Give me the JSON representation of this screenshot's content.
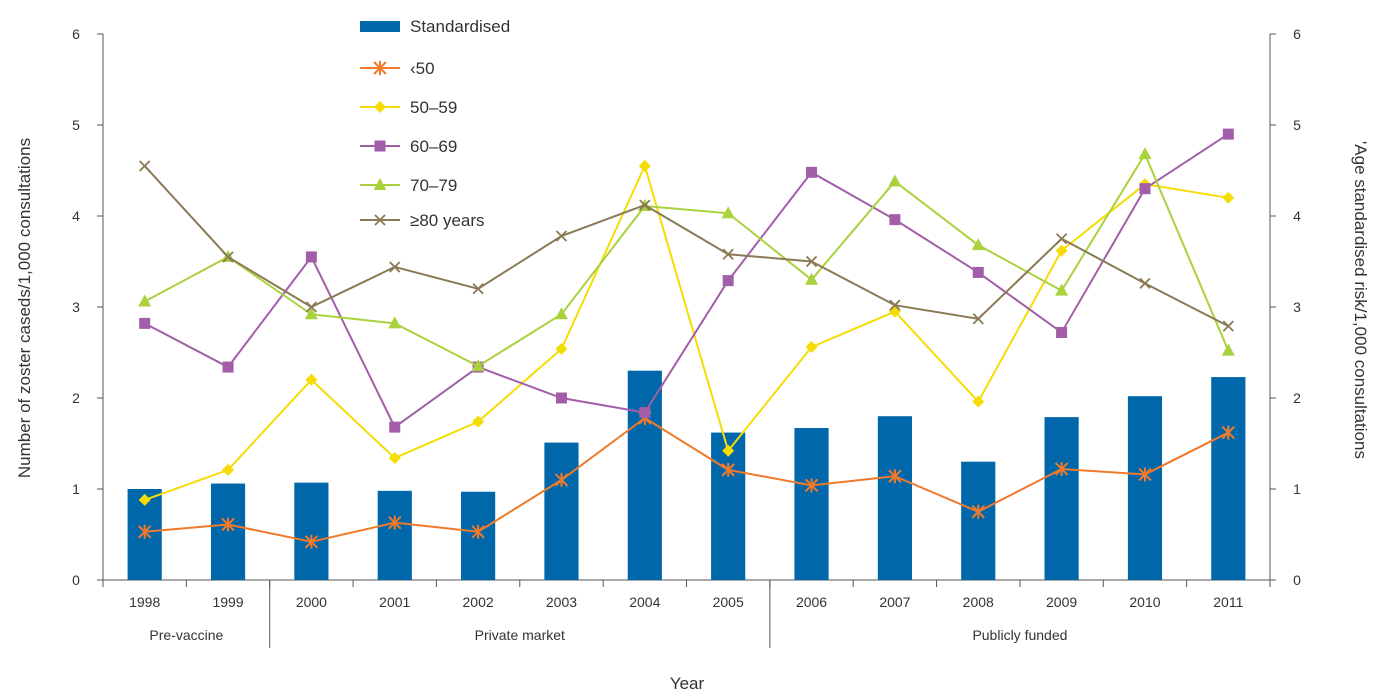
{
  "chart_data": {
    "type": "bar",
    "categories": [
      "1998",
      "1999",
      "2000",
      "2001",
      "2002",
      "2003",
      "2004",
      "2005",
      "2006",
      "2007",
      "2008",
      "2009",
      "2010",
      "2011"
    ],
    "groups": [
      {
        "label": "Pre-vaccine",
        "start": "1998",
        "end": "1999"
      },
      {
        "label": "Private market",
        "start": "2000",
        "end": "2005"
      },
      {
        "label": "Publicly funded",
        "start": "2006",
        "end": "2011"
      }
    ],
    "xlabel": "Year",
    "ylabel": "Number of zoster caseds/1,000 consultations",
    "ylabel_right": "'Age standardised risk/1,000 consultations",
    "ylim": [
      0,
      6
    ],
    "yticks": [
      "0",
      "1",
      "2",
      "3",
      "4",
      "5",
      "6"
    ],
    "series": [
      {
        "name": "Standardised",
        "type": "bar",
        "axis": "right",
        "color": "#0068aa",
        "values": [
          1.0,
          1.06,
          1.07,
          0.98,
          0.97,
          1.51,
          2.3,
          1.62,
          1.67,
          1.8,
          1.3,
          1.79,
          2.02,
          2.23
        ]
      },
      {
        "name": "‹50",
        "type": "line",
        "marker": "asterisk",
        "color": "#f07a2a",
        "values": [
          0.53,
          0.61,
          0.42,
          0.63,
          0.53,
          1.1,
          1.78,
          1.21,
          1.04,
          1.14,
          0.75,
          1.22,
          1.16,
          1.62
        ]
      },
      {
        "name": "50–59",
        "type": "line",
        "marker": "diamond",
        "color": "#f5dc05",
        "values": [
          0.88,
          1.21,
          2.2,
          1.34,
          1.74,
          2.54,
          4.55,
          1.42,
          2.56,
          2.95,
          1.96,
          3.62,
          4.35,
          4.2
        ]
      },
      {
        "name": "60–69",
        "type": "line",
        "marker": "square",
        "color": "#a25ea8",
        "values": [
          2.82,
          2.34,
          3.55,
          1.68,
          2.34,
          2.0,
          1.84,
          3.29,
          4.48,
          3.96,
          3.38,
          2.72,
          4.3,
          4.9
        ]
      },
      {
        "name": "70–79",
        "type": "line",
        "marker": "triangle",
        "color": "#a9d23d",
        "values": [
          3.06,
          3.55,
          2.92,
          2.82,
          2.35,
          2.92,
          4.11,
          4.03,
          3.3,
          4.38,
          3.68,
          3.18,
          4.68,
          2.52
        ]
      },
      {
        "name": "≥80 years",
        "type": "line",
        "marker": "x",
        "color": "#8a7a55",
        "values": [
          4.55,
          3.55,
          3.0,
          3.44,
          3.2,
          3.78,
          4.12,
          3.58,
          3.5,
          3.02,
          2.87,
          3.75,
          3.26,
          2.79
        ]
      }
    ]
  }
}
